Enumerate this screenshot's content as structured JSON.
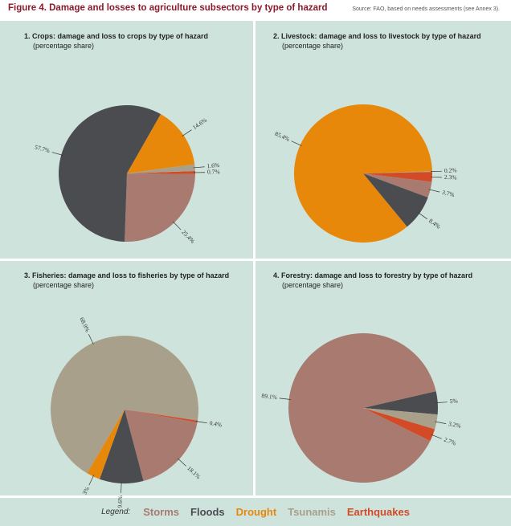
{
  "figure": {
    "title": "Figure 4. Damage and losses to agriculture subsectors by type of hazard",
    "source": "Source: FAO, based on needs assessments (see Annex 3)."
  },
  "legend": {
    "label": "Legend:",
    "items": [
      {
        "name": "Storms",
        "color": "#a87a70"
      },
      {
        "name": "Floods",
        "color": "#4a4c50"
      },
      {
        "name": "Drought",
        "color": "#e8880a"
      },
      {
        "name": "Tsunamis",
        "color": "#a8a08a"
      },
      {
        "name": "Earthquakes",
        "color": "#d24a26"
      }
    ]
  },
  "chart_data": [
    {
      "type": "pie",
      "title": "1. Crops: damage and loss to crops by type of hazard",
      "subtitle": "(percentage share)",
      "slices": [
        {
          "category": "Earthquakes",
          "value": 0.7,
          "label": "0.7%",
          "color": "#d24a26"
        },
        {
          "category": "Storms",
          "value": 25.4,
          "label": "25.4%",
          "color": "#a87a70"
        },
        {
          "category": "Floods",
          "value": 57.7,
          "label": "57.7%",
          "color": "#4a4c50"
        },
        {
          "category": "Drought",
          "value": 14.6,
          "label": "14.6%",
          "color": "#e8880a"
        },
        {
          "category": "Tsunamis",
          "value": 1.6,
          "label": "1.6%",
          "color": "#a8a08a"
        }
      ]
    },
    {
      "type": "pie",
      "title": "2. Livestock: damage and loss to livestock by type of hazard",
      "subtitle": "(percentage share)",
      "slices": [
        {
          "category": "Tsunamis",
          "value": 0.2,
          "label": "0.2%",
          "color": "#a8a08a"
        },
        {
          "category": "Earthquakes",
          "value": 2.3,
          "label": "2.3%",
          "color": "#d24a26"
        },
        {
          "category": "Storms",
          "value": 3.7,
          "label": "3.7%",
          "color": "#a87a70"
        },
        {
          "category": "Floods",
          "value": 8.4,
          "label": "8.4%",
          "color": "#4a4c50"
        },
        {
          "category": "Drought",
          "value": 85.4,
          "label": "85.4%",
          "color": "#e8880a"
        }
      ]
    },
    {
      "type": "pie",
      "title": "3. Fisheries: damage and loss to fisheries by type of hazard",
      "subtitle": "(percentage share)",
      "slices": [
        {
          "category": "Storms",
          "value": 18.1,
          "label": "18.1%",
          "color": "#a87a70"
        },
        {
          "category": "Floods",
          "value": 9.6,
          "label": "9.6%",
          "color": "#4a4c50"
        },
        {
          "category": "Drought",
          "value": 3,
          "label": "3%",
          "color": "#e8880a"
        },
        {
          "category": "Tsunamis",
          "value": 68.9,
          "label": "68.9%",
          "color": "#a8a08a"
        },
        {
          "category": "Earthquakes",
          "value": 0.4,
          "label": "0.4%",
          "color": "#d24a26"
        }
      ]
    },
    {
      "type": "pie",
      "title": "4. Forestry: damage and loss to forestry by type of hazard",
      "subtitle": "(percentage share)",
      "slices": [
        {
          "category": "Floods",
          "value": 5,
          "label": "5%",
          "color": "#4a4c50"
        },
        {
          "category": "Tsunamis",
          "value": 3.2,
          "label": "3.2%",
          "color": "#a8a08a"
        },
        {
          "category": "Earthquakes",
          "value": 2.7,
          "label": "2.7%",
          "color": "#d24a26"
        },
        {
          "category": "Storms",
          "value": 89.1,
          "label": "89.1%",
          "color": "#a87a70"
        }
      ]
    }
  ]
}
